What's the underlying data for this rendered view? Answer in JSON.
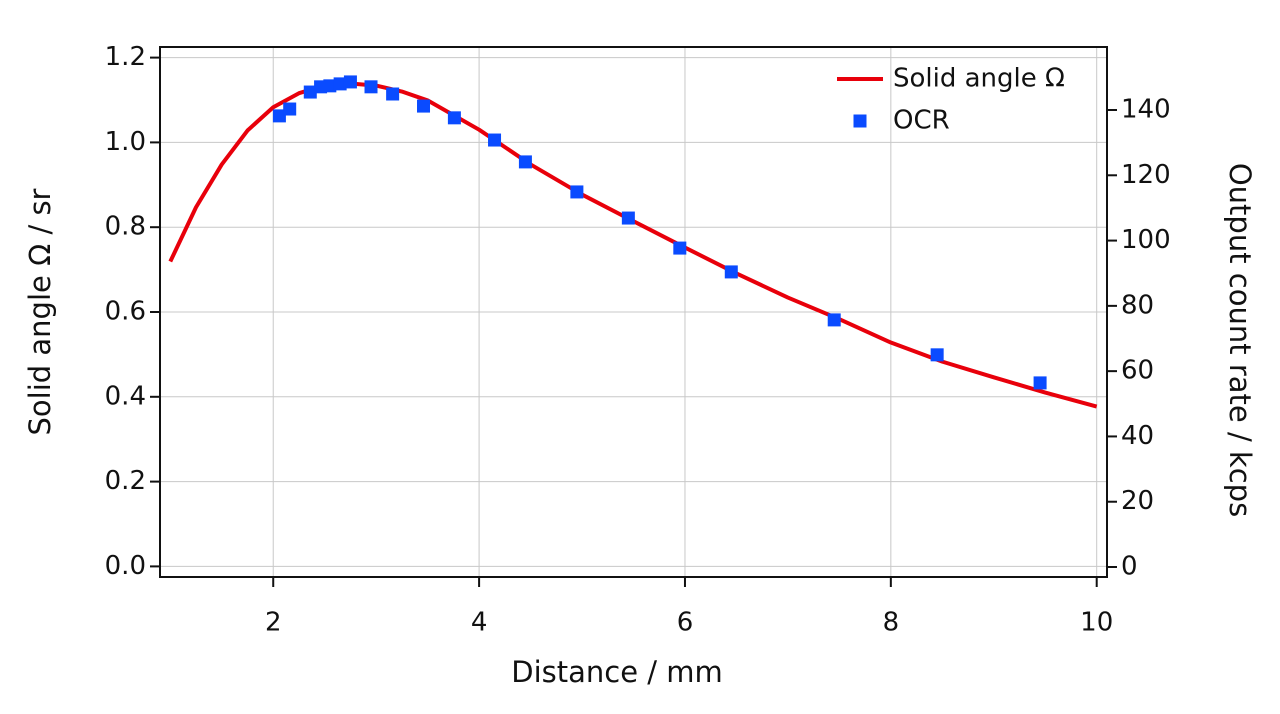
{
  "chart_data": {
    "type": "line",
    "xlabel": "Distance / mm",
    "ylabel": "Solid angle Ω / sr",
    "y2label": "Output count rate / kcps",
    "xlim": [
      0.9,
      10.1
    ],
    "xticks": [
      2,
      4,
      6,
      8,
      10
    ],
    "ylim": [
      -0.025,
      1.225
    ],
    "yticks": [
      {
        "value": 0,
        "label": "0.0"
      },
      0.2,
      0.4,
      0.6,
      0.8,
      {
        "value": 1,
        "label": "1.0"
      },
      1.2
    ],
    "y2lim": [
      -3.06,
      159.3
    ],
    "y2ticks": [
      0,
      20,
      40,
      60,
      80,
      100,
      120,
      140
    ],
    "grid": true,
    "legend": "upper right",
    "series": [
      {
        "name": "Solid angle Ω",
        "type": "line",
        "color": "#e8000b",
        "x": [
          1,
          1.25,
          1.5,
          1.75,
          2,
          2.25,
          2.5,
          2.75,
          3,
          3.25,
          3.5,
          4,
          4.5,
          5,
          5.5,
          6,
          6.5,
          7,
          7.5,
          8,
          8.5,
          9,
          9.5,
          10
        ],
        "values": [
          0.719,
          0.847,
          0.948,
          1.028,
          1.083,
          1.116,
          1.134,
          1.139,
          1.134,
          1.12,
          1.099,
          1.03,
          0.948,
          0.877,
          0.814,
          0.752,
          0.691,
          0.634,
          0.583,
          0.528,
          0.483,
          0.446,
          0.41,
          0.377
        ]
      },
      {
        "name": "OCR",
        "type": "scatter",
        "axis": "y2",
        "color": "#0a4bff",
        "x": [
          2.06,
          2.16,
          2.36,
          2.46,
          2.55,
          2.65,
          2.75,
          2.95,
          3.16,
          3.46,
          3.76,
          4.15,
          4.45,
          4.95,
          5.45,
          5.95,
          6.45,
          7.45,
          8.45,
          9.45
        ],
        "values": [
          138.2,
          140.3,
          145.5,
          147.1,
          147.4,
          148.0,
          148.6,
          147.1,
          144.9,
          141.2,
          137.6,
          130.8,
          124.1,
          114.9,
          106.9,
          97.7,
          90.4,
          75.7,
          65.0,
          56.4
        ]
      }
    ]
  }
}
